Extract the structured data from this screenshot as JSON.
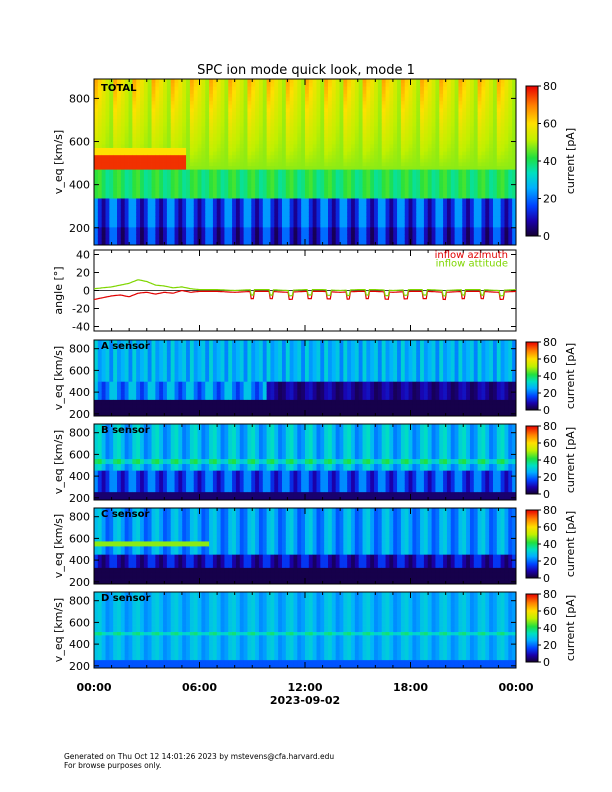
{
  "title": "SPC ion mode quick look, mode 1",
  "footer": {
    "line1": "Generated on Thu Oct 12 14:01:26 2023 by mstevens@cfa.harvard.edu",
    "line2": "For browse purposes only."
  },
  "chart_data": [
    {
      "type": "heatmap",
      "panel_label": "TOTAL",
      "ylabel": "v_eq [km/s]",
      "ylim": [
        120,
        890
      ],
      "yticks": [
        200,
        400,
        600,
        800
      ],
      "colorbar": {
        "label": "current [pA]",
        "range": [
          0,
          80
        ],
        "ticks": [
          0,
          20,
          40,
          60,
          80
        ]
      },
      "features": {
        "periodic_cycles": 22,
        "high_current_band_kms": [
          470,
          540
        ],
        "high_current_until_hour": 5.2
      }
    },
    {
      "type": "line",
      "ylabel": "angle [°]",
      "ylim": [
        -45,
        45
      ],
      "yticks": [
        -40,
        -20,
        0,
        20,
        40
      ],
      "series": [
        {
          "name": "inflow azimuth",
          "color": "#e00000",
          "x_hours": [
            0,
            0.5,
            1,
            1.5,
            2,
            2.5,
            3,
            3.5,
            4,
            4.5,
            5,
            5.5,
            6,
            7,
            8,
            9,
            10,
            11,
            12,
            13,
            14,
            15,
            16,
            17,
            18,
            19,
            20,
            21,
            22,
            23,
            24
          ],
          "values": [
            -10,
            -8,
            -6,
            -5,
            -7,
            -3,
            -2,
            -4,
            -2,
            -3,
            0,
            -2,
            -1,
            -1,
            -2,
            -1,
            -1,
            -2,
            -1,
            -1,
            -2,
            -1,
            -1,
            -2,
            -1,
            -1,
            -2,
            -1,
            -1,
            -2,
            -1
          ]
        },
        {
          "name": "inflow attitude",
          "color": "#7fd600",
          "x_hours": [
            0,
            0.5,
            1,
            1.5,
            2,
            2.5,
            3,
            3.5,
            4,
            4.5,
            5,
            5.5,
            6,
            7,
            8,
            9,
            10,
            11,
            12,
            13,
            14,
            15,
            16,
            17,
            18,
            19,
            20,
            21,
            22,
            23,
            24
          ],
          "values": [
            2,
            3,
            4,
            6,
            8,
            12,
            10,
            6,
            5,
            3,
            4,
            2,
            1,
            1,
            0,
            1,
            1,
            0,
            1,
            1,
            0,
            1,
            1,
            0,
            1,
            1,
            0,
            1,
            1,
            0,
            1
          ]
        }
      ]
    },
    {
      "type": "heatmap",
      "panel_label": "A sensor",
      "ylabel": "v_eq [km/s]",
      "ylim": [
        180,
        880
      ],
      "yticks": [
        200,
        400,
        600,
        800
      ],
      "colorbar": {
        "label": "current [pA]",
        "range": [
          0,
          80
        ],
        "ticks": [
          0,
          20,
          40,
          60,
          80
        ]
      },
      "features": {
        "dark_below_kms": 330,
        "dark_band_kms_after_10h": [
          330,
          500
        ]
      }
    },
    {
      "type": "heatmap",
      "panel_label": "B sensor",
      "ylabel": "v_eq [km/s]",
      "ylim": [
        180,
        880
      ],
      "yticks": [
        200,
        400,
        600,
        800
      ],
      "colorbar": {
        "label": "current [pA]",
        "range": [
          0,
          80
        ],
        "ticks": [
          0,
          20,
          40,
          60,
          80
        ]
      },
      "features": {
        "dark_below_kms": 260
      }
    },
    {
      "type": "heatmap",
      "panel_label": "C sensor",
      "ylabel": "v_eq [km/s]",
      "ylim": [
        180,
        880
      ],
      "yticks": [
        200,
        400,
        600,
        800
      ],
      "colorbar": {
        "label": "current [pA]",
        "range": [
          0,
          80
        ],
        "ticks": [
          0,
          20,
          40,
          60,
          80
        ]
      },
      "features": {
        "dark_below_kms": 330
      }
    },
    {
      "type": "heatmap",
      "panel_label": "D sensor",
      "ylabel": "v_eq [km/s]",
      "ylim": [
        180,
        880
      ],
      "yticks": [
        200,
        400,
        600,
        800
      ],
      "colorbar": {
        "label": "current [pA]",
        "range": [
          0,
          80
        ],
        "ticks": [
          0,
          20,
          40,
          60,
          80
        ]
      },
      "features": {
        "vertical_stripes": 22
      }
    }
  ],
  "x_axis": {
    "ticks": [
      "00:00",
      "06:00",
      "12:00",
      "18:00",
      "00:00"
    ],
    "tick_hours": [
      0,
      6,
      12,
      18,
      24
    ],
    "date_label": "2023-09-02"
  },
  "colors": {
    "azimuth": "#e00000",
    "attitude": "#7fd600"
  }
}
